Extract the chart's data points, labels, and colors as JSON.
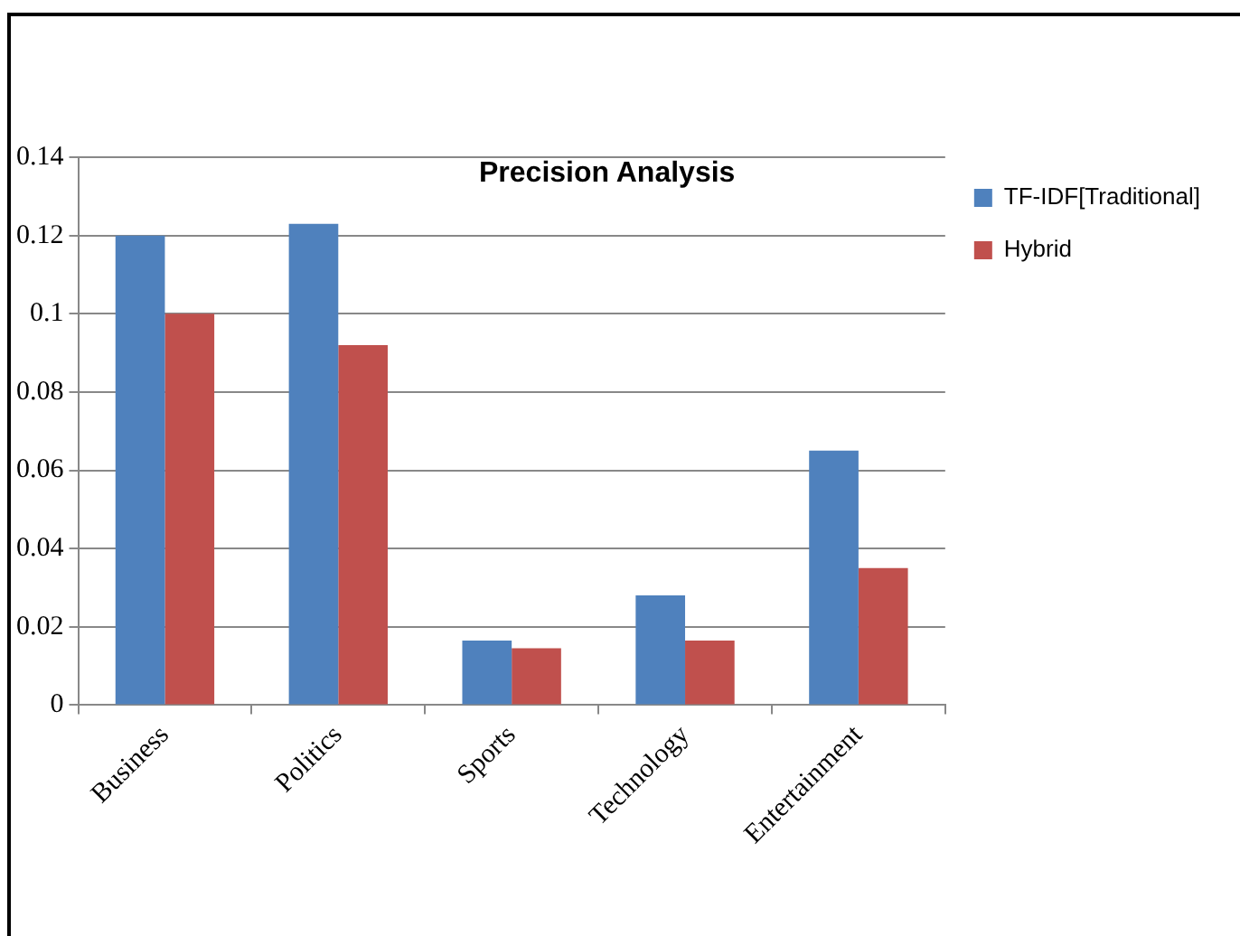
{
  "chart_data": {
    "type": "bar",
    "title": "Precision Analysis",
    "categories": [
      "Business",
      "Politics",
      "Sports",
      "Technology",
      "Entertainment"
    ],
    "series": [
      {
        "name": "TF-IDF[Traditional]",
        "color": "#4f81bd",
        "values": [
          0.12,
          0.123,
          0.0165,
          0.028,
          0.065
        ]
      },
      {
        "name": "Hybrid",
        "color": "#c0504d",
        "values": [
          0.1,
          0.092,
          0.0145,
          0.0165,
          0.035
        ]
      }
    ],
    "ylim": [
      0,
      0.14
    ],
    "yticks": [
      0,
      0.02,
      0.04,
      0.06,
      0.08,
      0.1,
      0.12,
      0.14
    ],
    "grid": "y",
    "legend": "right"
  }
}
